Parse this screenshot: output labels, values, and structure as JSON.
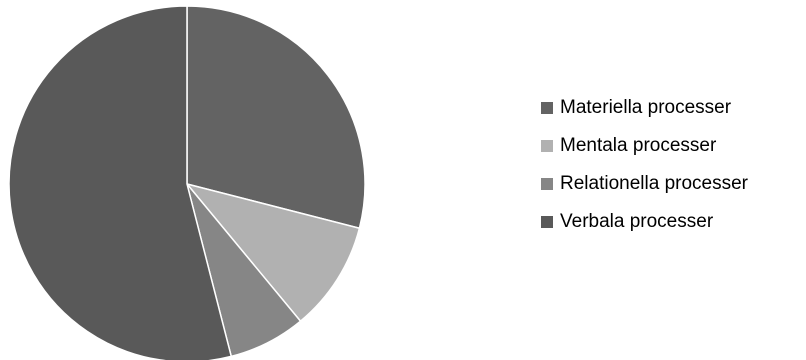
{
  "chart_data": {
    "type": "pie",
    "title": "",
    "categories": [
      "Materiella processer",
      "Mentala processer",
      "Relationella processer",
      "Verbala processer"
    ],
    "values": [
      29,
      10,
      7,
      54
    ],
    "colors": [
      "#636363",
      "#b1b1b1",
      "#868686",
      "#595959"
    ],
    "slice_edge_color": "#ffffff",
    "start_angle_deg": 0,
    "direction": "clockwise",
    "legend_position": "right"
  }
}
